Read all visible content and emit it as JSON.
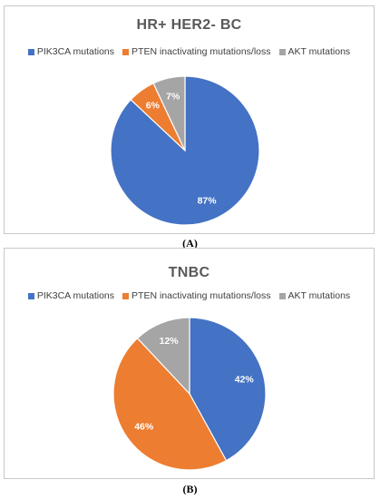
{
  "chart_data": [
    {
      "type": "pie",
      "title": "HR+ HER2- BC",
      "categories": [
        "PIK3CA mutations",
        "PTEN inactivating mutations/loss",
        "AKT mutations"
      ],
      "values": [
        87,
        6,
        7
      ],
      "labels": [
        "87%",
        "6%",
        "7%"
      ],
      "colors": [
        "#4472c4",
        "#ed7d31",
        "#a5a5a5"
      ],
      "legend": "top",
      "panel_label": "(A)"
    },
    {
      "type": "pie",
      "title": "TNBC",
      "categories": [
        "PIK3CA mutations",
        "PTEN inactivating mutations/loss",
        "AKT mutations"
      ],
      "values": [
        42,
        46,
        12
      ],
      "labels": [
        "42%",
        "46%",
        "12%"
      ],
      "colors": [
        "#4472c4",
        "#ed7d31",
        "#a5a5a5"
      ],
      "legend": "top",
      "panel_label": "(B)"
    }
  ]
}
